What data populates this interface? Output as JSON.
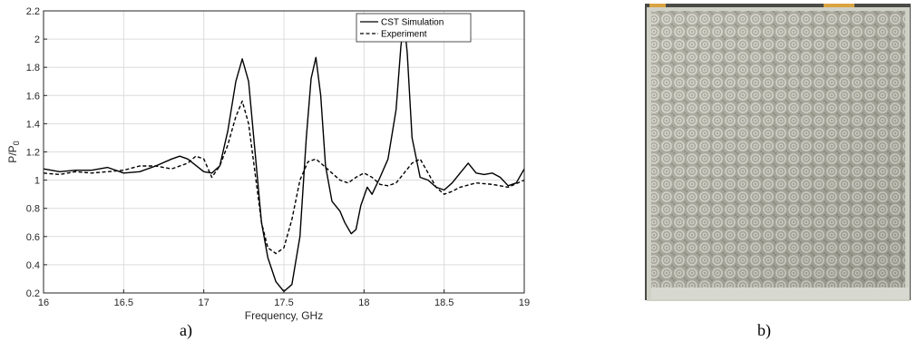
{
  "chart_data": {
    "type": "line",
    "xlabel": "Frequency, GHz",
    "ylabel_main": "P/P",
    "ylabel_sub": "0",
    "xlim": [
      16,
      19
    ],
    "ylim": [
      0.2,
      2.2
    ],
    "x_ticks": [
      "16",
      "16.5",
      "17",
      "17.5",
      "18",
      "18.5",
      "19"
    ],
    "y_ticks": [
      "0.2",
      "0.4",
      "0.6",
      "0.8",
      "1",
      "1.2",
      "1.4",
      "1.6",
      "1.8",
      "2",
      "2.2"
    ],
    "grid": true,
    "legend_position": "top-right",
    "series": [
      {
        "name": "CST Simulation",
        "style": "solid",
        "x": [
          16.0,
          16.1,
          16.2,
          16.3,
          16.4,
          16.5,
          16.6,
          16.7,
          16.8,
          16.85,
          16.9,
          17.0,
          17.05,
          17.1,
          17.15,
          17.2,
          17.24,
          17.28,
          17.32,
          17.36,
          17.4,
          17.45,
          17.5,
          17.55,
          17.6,
          17.64,
          17.67,
          17.7,
          17.73,
          17.76,
          17.8,
          17.85,
          17.88,
          17.92,
          17.95,
          17.98,
          18.02,
          18.05,
          18.1,
          18.15,
          18.2,
          18.23,
          18.25,
          18.27,
          18.3,
          18.35,
          18.4,
          18.45,
          18.5,
          18.55,
          18.6,
          18.65,
          18.7,
          18.75,
          18.8,
          18.85,
          18.9,
          18.95,
          19.0
        ],
        "y": [
          1.08,
          1.06,
          1.07,
          1.07,
          1.09,
          1.05,
          1.06,
          1.1,
          1.15,
          1.17,
          1.15,
          1.06,
          1.05,
          1.1,
          1.35,
          1.7,
          1.86,
          1.7,
          1.2,
          0.7,
          0.45,
          0.28,
          0.21,
          0.26,
          0.6,
          1.3,
          1.72,
          1.87,
          1.6,
          1.1,
          0.85,
          0.78,
          0.7,
          0.62,
          0.65,
          0.82,
          0.95,
          0.9,
          1.02,
          1.15,
          1.5,
          1.95,
          2.13,
          1.9,
          1.3,
          1.02,
          1.0,
          0.95,
          0.93,
          0.98,
          1.05,
          1.12,
          1.05,
          1.04,
          1.05,
          1.02,
          0.96,
          0.98,
          1.08
        ]
      },
      {
        "name": "Experiment",
        "style": "dashed",
        "x": [
          16.0,
          16.1,
          16.2,
          16.3,
          16.4,
          16.5,
          16.6,
          16.7,
          16.8,
          16.9,
          16.95,
          17.0,
          17.05,
          17.1,
          17.15,
          17.2,
          17.24,
          17.28,
          17.32,
          17.36,
          17.4,
          17.45,
          17.5,
          17.55,
          17.6,
          17.65,
          17.7,
          17.75,
          17.8,
          17.85,
          17.9,
          17.95,
          18.0,
          18.05,
          18.1,
          18.15,
          18.2,
          18.25,
          18.3,
          18.35,
          18.4,
          18.45,
          18.5,
          18.55,
          18.6,
          18.7,
          18.8,
          18.9,
          19.0
        ],
        "y": [
          1.05,
          1.04,
          1.06,
          1.05,
          1.06,
          1.07,
          1.1,
          1.1,
          1.08,
          1.12,
          1.17,
          1.15,
          1.02,
          1.1,
          1.25,
          1.45,
          1.56,
          1.4,
          1.05,
          0.7,
          0.52,
          0.48,
          0.52,
          0.72,
          1.0,
          1.13,
          1.15,
          1.1,
          1.05,
          1.0,
          0.98,
          1.02,
          1.05,
          1.02,
          0.97,
          0.96,
          0.98,
          1.05,
          1.12,
          1.15,
          1.05,
          0.95,
          0.9,
          0.92,
          0.95,
          0.98,
          0.97,
          0.95,
          1.0
        ]
      }
    ]
  },
  "captions": {
    "a": "a)",
    "b": "b)"
  }
}
